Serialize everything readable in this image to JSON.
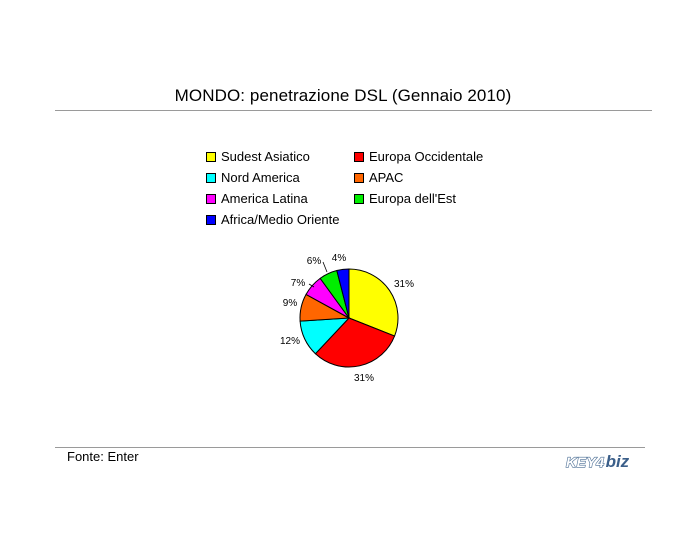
{
  "chart_data": {
    "type": "pie",
    "title": "MONDO: penetrazione DSL (Gennaio 2010)",
    "slices": [
      {
        "label": "Sudest Asiatico",
        "value": 31,
        "display": "31%",
        "color": "#ffff00"
      },
      {
        "label": "Europa Occidentale",
        "value": 31,
        "display": "31%",
        "color": "#ff0000"
      },
      {
        "label": "Nord America",
        "value": 12,
        "display": "12%",
        "color": "#00ffff"
      },
      {
        "label": "APAC",
        "value": 9,
        "display": "9%",
        "color": "#ff6600"
      },
      {
        "label": "America Latina",
        "value": 7,
        "display": "7%",
        "color": "#ff00ff"
      },
      {
        "label": "Europa dell'Est",
        "value": 6,
        "display": "6%",
        "color": "#00ee00"
      },
      {
        "label": "Africa/Medio Oriente",
        "value": 4,
        "display": "4%",
        "color": "#0000ff"
      }
    ],
    "legend_order": [
      "Sudest Asiatico",
      "Europa Occidentale",
      "Nord America",
      "APAC",
      "America Latina",
      "Europa dell'Est",
      "Africa/Medio Oriente"
    ],
    "legend_placement": "top"
  },
  "source": "Fonte: Enter",
  "logo": {
    "part1": "KEY4",
    "part2": "biz"
  }
}
